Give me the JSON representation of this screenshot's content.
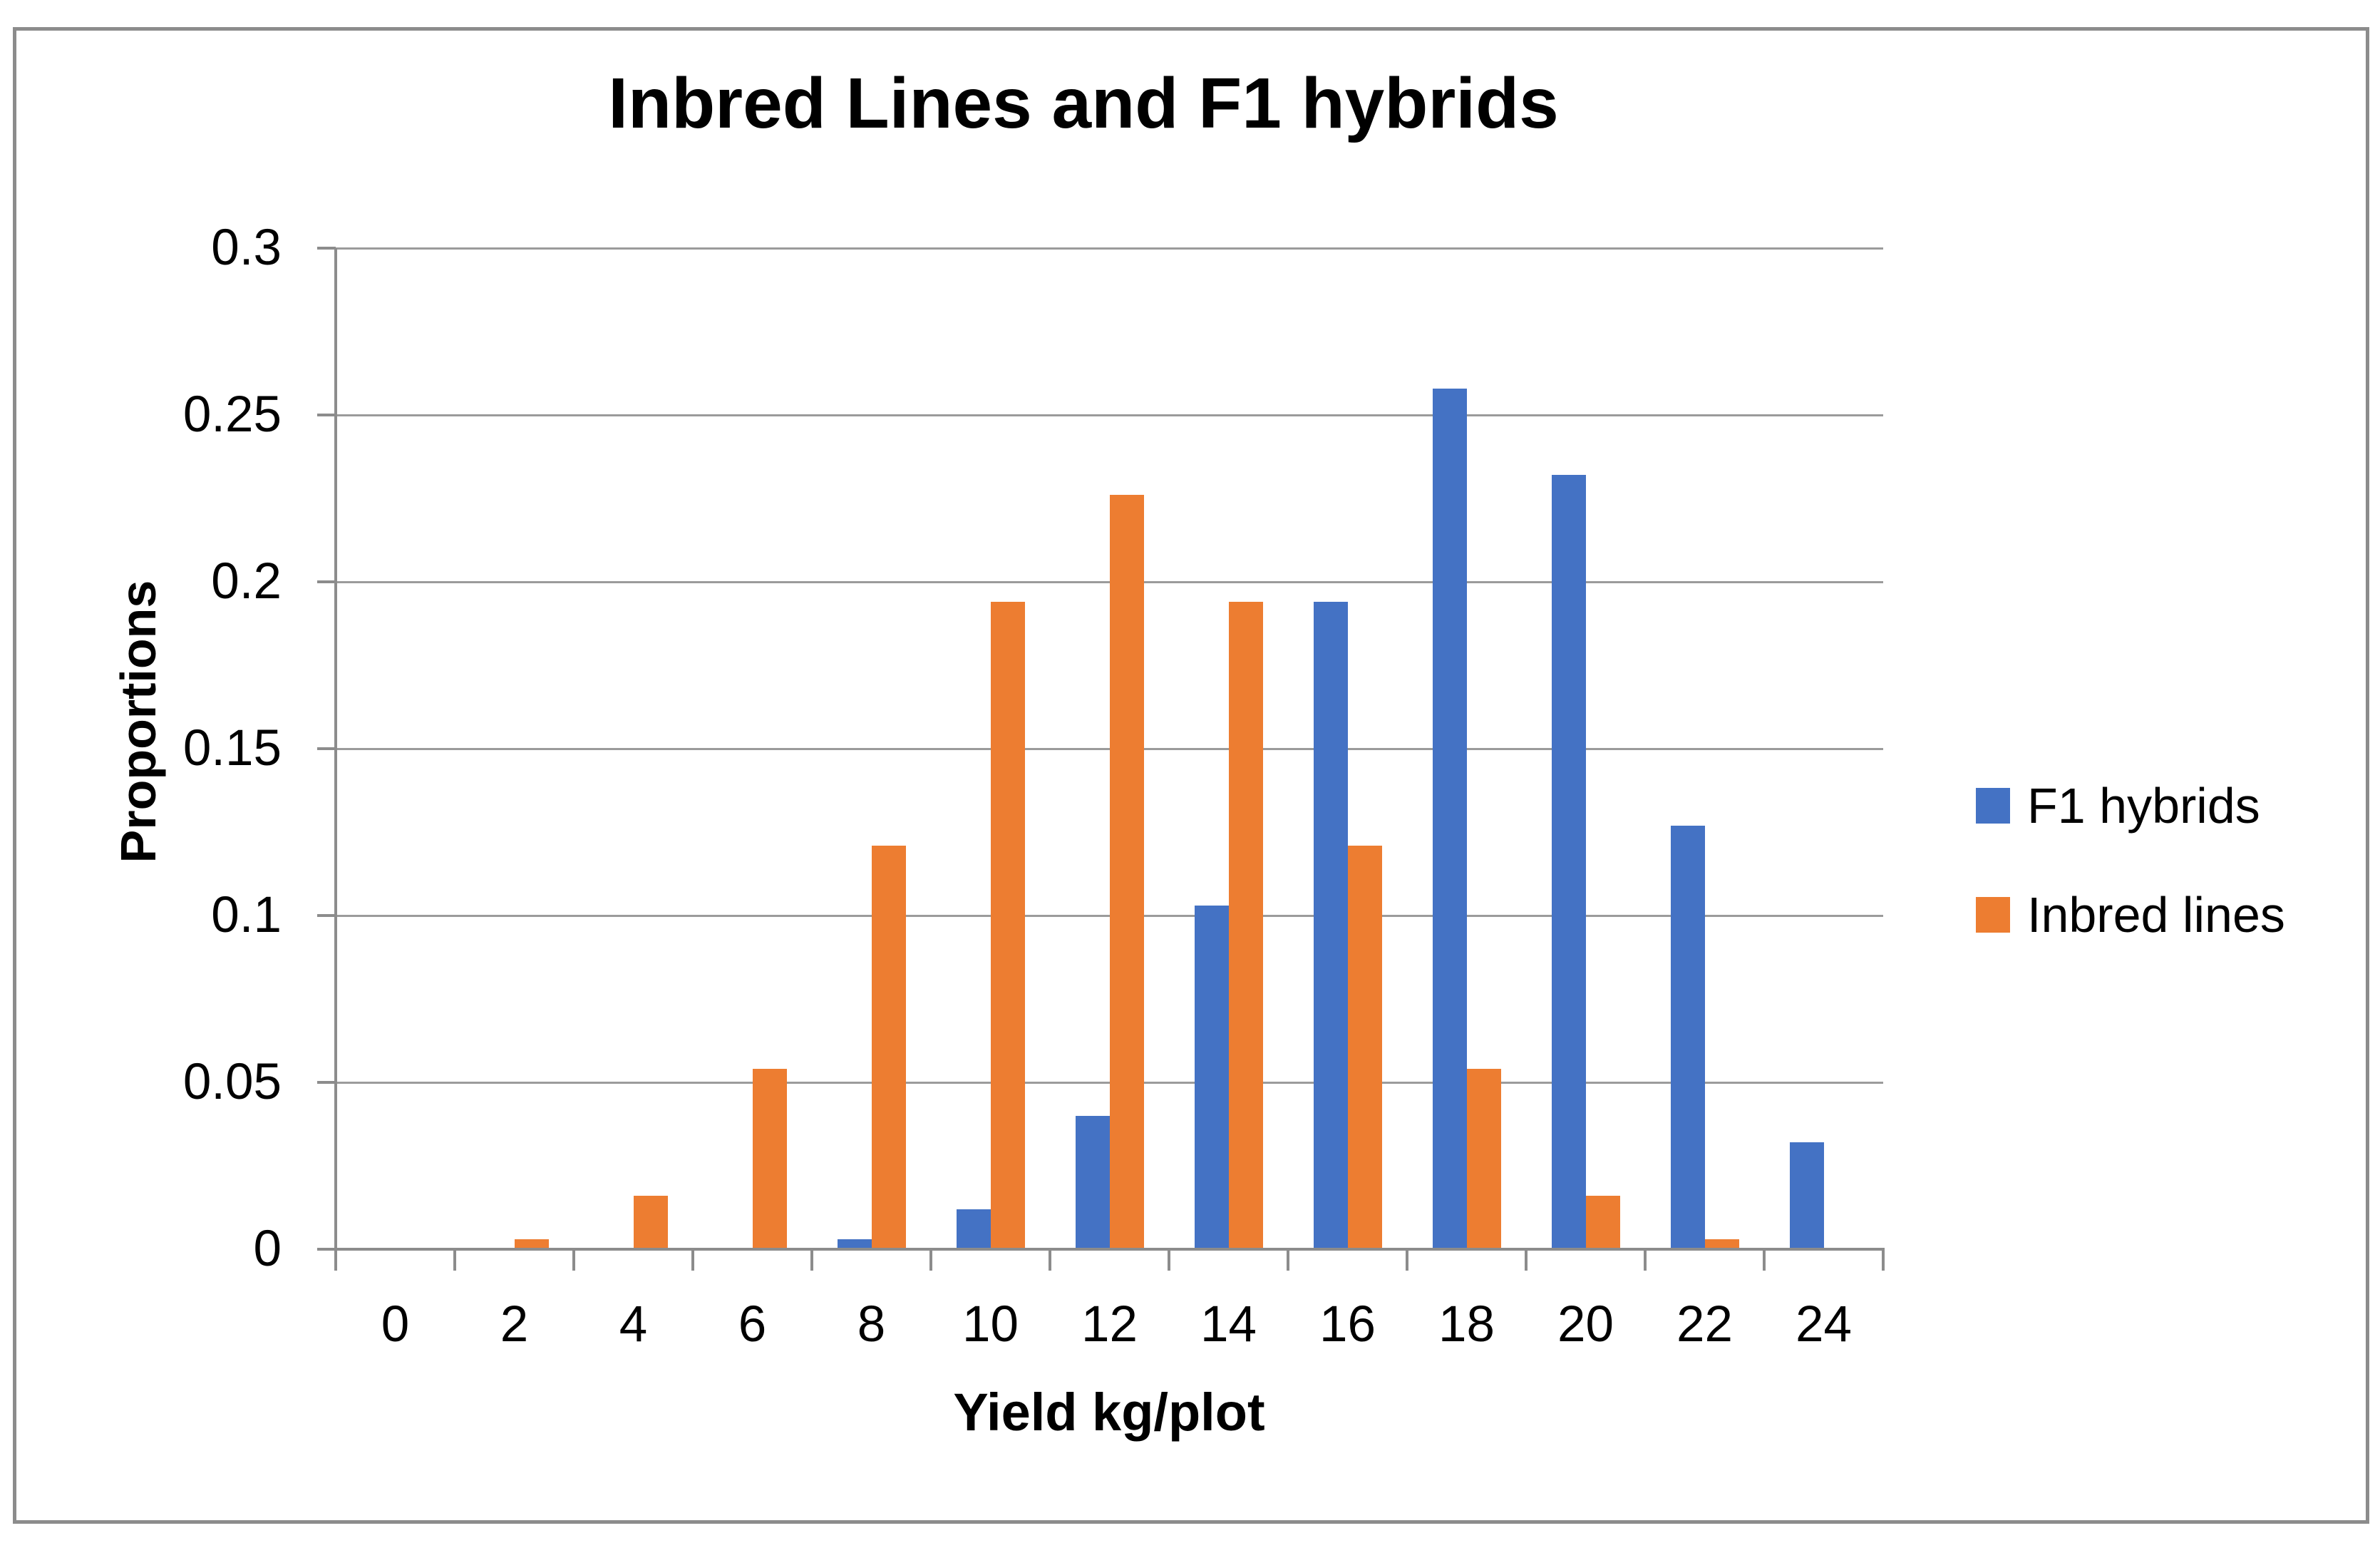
{
  "chart_data": {
    "type": "bar",
    "title": "Inbred Lines and F1 hybrids",
    "xlabel": "Yield kg/plot",
    "ylabel": "Proportions",
    "categories": [
      "0",
      "2",
      "4",
      "6",
      "8",
      "10",
      "12",
      "14",
      "16",
      "18",
      "20",
      "22",
      "24"
    ],
    "series": [
      {
        "name": "F1 hybrids",
        "color": "#4472C4",
        "values": [
          0,
          0,
          0,
          0,
          0.003,
          0.012,
          0.04,
          0.103,
          0.194,
          0.258,
          0.232,
          0.127,
          0.032
        ]
      },
      {
        "name": "Inbred lines",
        "color": "#ED7D31",
        "values": [
          0,
          0.003,
          0.016,
          0.054,
          0.121,
          0.194,
          0.226,
          0.194,
          0.121,
          0.054,
          0.016,
          0.003,
          0
        ]
      }
    ],
    "ylim": [
      0,
      0.3
    ],
    "y_tick_step": 0.05,
    "y_tick_labels": [
      "0",
      "0.05",
      "0.1",
      "0.15",
      "0.2",
      "0.25",
      "0.3"
    ],
    "grid": true,
    "legend_position": "right",
    "colors": {
      "axis": "#8c8c8c",
      "gridline": "#9b9b9b",
      "frame": "#8c8c8c",
      "text": "#000000",
      "background": "#ffffff"
    }
  }
}
